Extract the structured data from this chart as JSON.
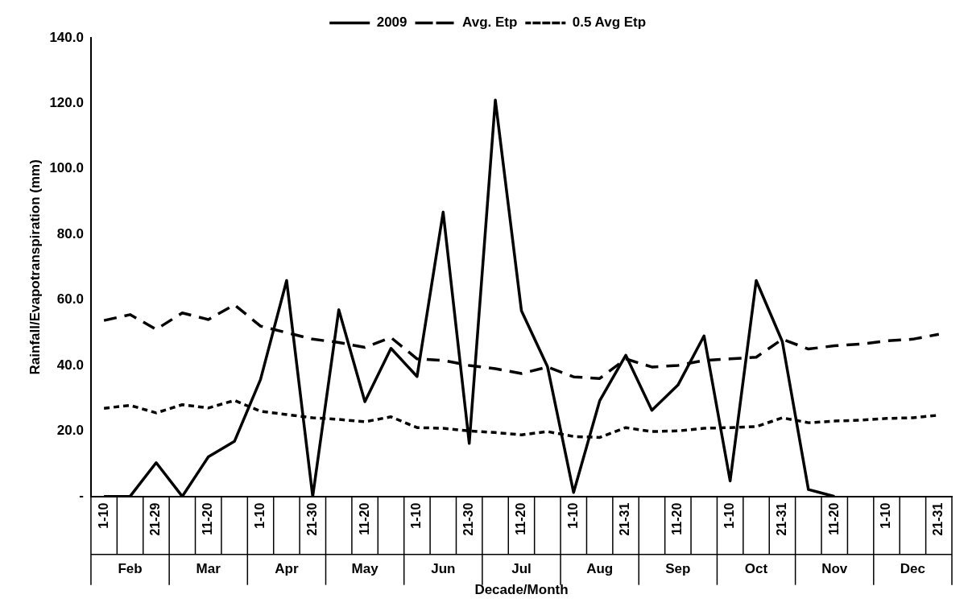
{
  "chart_data": {
    "type": "line",
    "xlabel": "Decade/Month",
    "ylabel": "Rainfall/Evapotranspiration (mm)",
    "categories": [
      "1-10",
      null,
      "21-29",
      null,
      "11-20",
      null,
      "1-10",
      null,
      "21-30",
      null,
      "11-20",
      null,
      "1-10",
      null,
      "21-30",
      null,
      "11-20",
      null,
      "1-10",
      null,
      "21-31",
      null,
      "11-20",
      null,
      "1-10",
      null,
      "21-31",
      null,
      "11-20",
      null,
      "1-10",
      null,
      "21-31"
    ],
    "series": [
      {
        "name": "2009",
        "color": "#000000",
        "line_style": "solid",
        "values": [
          0,
          0,
          10.3,
          0,
          12.1,
          16.8,
          35.7,
          65.9,
          0,
          57,
          28.9,
          45.2,
          36.6,
          86.8,
          16.2,
          121,
          56.7,
          39.6,
          1.2,
          29.2,
          43.1,
          26.3,
          34,
          49,
          4.7,
          65.9,
          47.3,
          2.1,
          0,
          null,
          null,
          null,
          null
        ]
      },
      {
        "name": "Avg. Etp",
        "color": "#000000",
        "line_style": "dashed",
        "values": [
          53.7,
          55.5,
          51,
          56,
          54,
          58.5,
          52,
          50,
          48,
          47,
          45.5,
          48.5,
          42,
          41.5,
          40,
          39,
          37.5,
          39.5,
          36.5,
          36,
          42,
          39.5,
          40,
          41.5,
          42,
          42.5,
          48,
          45,
          46,
          46.5,
          47.5,
          48,
          49.5
        ]
      },
      {
        "name": "0.5 Avg Etp",
        "color": "#000000",
        "line_style": "dotted",
        "values": [
          26.9,
          27.8,
          25.5,
          28,
          27,
          29.3,
          26,
          25,
          24,
          23.5,
          22.8,
          24.3,
          21,
          20.8,
          20,
          19.5,
          18.8,
          19.8,
          18.3,
          18,
          21,
          19.8,
          20,
          20.8,
          21,
          21.3,
          24,
          22.5,
          23,
          23.3,
          23.8,
          24,
          24.8
        ]
      }
    ],
    "annotations": [
      "Feb",
      "Mar",
      "Apr",
      "May",
      "Jun",
      "Jul",
      "Aug",
      "Sep",
      "Oct",
      "Nov",
      "Dec"
    ],
    "ylim": [
      0,
      140
    ],
    "yticks": [
      {
        "value": 0,
        "label": "-"
      },
      {
        "value": 20,
        "label": "20.0"
      },
      {
        "value": 40,
        "label": "40.0"
      },
      {
        "value": 60,
        "label": "60.0"
      },
      {
        "value": 80,
        "label": "80.0"
      },
      {
        "value": 100,
        "label": "100.0"
      },
      {
        "value": 120,
        "label": "120.0"
      },
      {
        "value": 140,
        "label": "140.0"
      }
    ],
    "grid": false,
    "legend": "top",
    "marker": "none"
  }
}
